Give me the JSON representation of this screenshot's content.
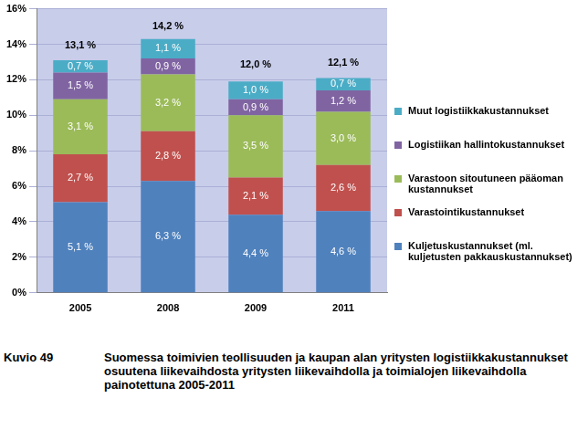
{
  "chart_data": {
    "type": "bar",
    "stacked": true,
    "data_labels": true,
    "grid": true,
    "legend": "right",
    "categories": [
      "2005",
      "2008",
      "2009",
      "2011"
    ],
    "series": [
      {
        "name": "Kuljetuskustannukset (ml. kuljetusten pakkauskustannukset)",
        "color": "#4f81bd",
        "values": [
          5.1,
          6.3,
          4.4,
          4.6
        ],
        "value_labels": [
          "5,1 %",
          "6,3 %",
          "4,4 %",
          "4,6 %"
        ]
      },
      {
        "name": "Varastointikustannukset",
        "color": "#c0504d",
        "values": [
          2.7,
          2.8,
          2.1,
          2.6
        ],
        "value_labels": [
          "2,7 %",
          "2,8 %",
          "2,1 %",
          "2,6 %"
        ]
      },
      {
        "name": "Varastoon sitoutuneen pääoman kustannukset",
        "color": "#9bbb59",
        "values": [
          3.1,
          3.2,
          3.5,
          3.0
        ],
        "value_labels": [
          "3,1 %",
          "3,2 %",
          "3,5 %",
          "3,0 %"
        ]
      },
      {
        "name": "Logistiikan hallintokustannukset",
        "color": "#8064a2",
        "values": [
          1.5,
          0.9,
          0.9,
          1.2
        ],
        "value_labels": [
          "1,5 %",
          "0,9 %",
          "0,9 %",
          "1,2 %"
        ]
      },
      {
        "name": "Muut logistiikkakustannukset",
        "color": "#4bacc6",
        "values": [
          0.7,
          1.1,
          1.0,
          0.7
        ],
        "value_labels": [
          "0,7 %",
          "1,1 %",
          "1,0 %",
          "0,7 %"
        ]
      }
    ],
    "totals": [
      13.1,
      14.2,
      12.0,
      12.1
    ],
    "total_labels": [
      "13,1 %",
      "14,2 %",
      "12,0 %",
      "12,1 %"
    ],
    "ylim": [
      0,
      16
    ],
    "yticks": [
      {
        "value": 0,
        "label": "0%"
      },
      {
        "value": 2,
        "label": "2%"
      },
      {
        "value": 4,
        "label": "4%"
      },
      {
        "value": 6,
        "label": "6%"
      },
      {
        "value": 8,
        "label": "8%"
      },
      {
        "value": 10,
        "label": "10%"
      },
      {
        "value": 12,
        "label": "12%"
      },
      {
        "value": 14,
        "label": "14%"
      },
      {
        "value": 16,
        "label": "16%"
      }
    ],
    "caption": {
      "label": "Kuvio 49",
      "text": "Suomessa toimivien teollisuuden ja kaupan alan yritysten logistiikkakustannukset osuutena liikevaihdosta yritysten liikevaihdolla ja toimialojen liikevaihdolla painotettuna 2005-2011"
    }
  }
}
